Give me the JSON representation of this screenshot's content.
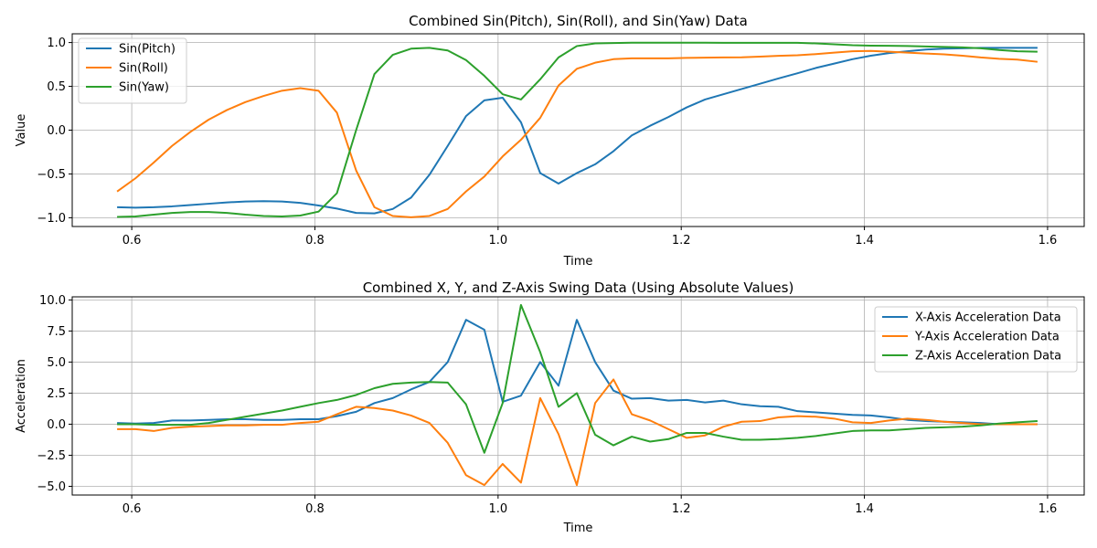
{
  "chart_data": [
    {
      "type": "line",
      "title": "Combined Sin(Pitch), Sin(Roll), and Sin(Yaw) Data",
      "xlabel": "Time",
      "ylabel": "Value",
      "xlim": [
        0.535,
        1.64
      ],
      "ylim": [
        -1.1,
        1.1
      ],
      "xticks": [
        0.6,
        0.8,
        1.0,
        1.2,
        1.4,
        1.6
      ],
      "xtick_labels": [
        "0.6",
        "0.8",
        "1.0",
        "1.2",
        "1.4",
        "1.6"
      ],
      "yticks": [
        -1.0,
        -0.5,
        0.0,
        0.5,
        1.0
      ],
      "ytick_labels": [
        "−1.0",
        "−0.5",
        "0.0",
        "0.5",
        "1.0"
      ],
      "grid": true,
      "legend_position": "upper-left",
      "x": [
        0.584,
        0.604,
        0.624,
        0.644,
        0.664,
        0.684,
        0.704,
        0.724,
        0.744,
        0.764,
        0.784,
        0.804,
        0.824,
        0.845,
        0.865,
        0.885,
        0.905,
        0.925,
        0.945,
        0.965,
        0.985,
        1.005,
        1.025,
        1.046,
        1.066,
        1.086,
        1.106,
        1.126,
        1.146,
        1.166,
        1.186,
        1.206,
        1.226,
        1.246,
        1.266,
        1.286,
        1.306,
        1.327,
        1.347,
        1.367,
        1.387,
        1.407,
        1.427,
        1.447,
        1.467,
        1.487,
        1.507,
        1.527,
        1.547,
        1.567,
        1.589
      ],
      "series": [
        {
          "name": "Sin(Pitch)",
          "color": "#1f77b4",
          "values": [
            -0.88,
            -0.885,
            -0.88,
            -0.87,
            -0.855,
            -0.84,
            -0.825,
            -0.815,
            -0.81,
            -0.815,
            -0.83,
            -0.86,
            -0.895,
            -0.945,
            -0.95,
            -0.9,
            -0.77,
            -0.51,
            -0.18,
            0.16,
            0.34,
            0.37,
            0.09,
            -0.49,
            -0.61,
            -0.49,
            -0.39,
            -0.24,
            -0.06,
            0.05,
            0.15,
            0.26,
            0.35,
            0.41,
            0.47,
            0.53,
            0.59,
            0.65,
            0.71,
            0.76,
            0.81,
            0.85,
            0.88,
            0.9,
            0.92,
            0.93,
            0.935,
            0.94,
            0.94,
            0.94,
            0.94
          ]
        },
        {
          "name": "Sin(Roll)",
          "color": "#ff7f0e",
          "values": [
            -0.7,
            -0.55,
            -0.37,
            -0.18,
            -0.02,
            0.12,
            0.23,
            0.32,
            0.39,
            0.45,
            0.48,
            0.45,
            0.2,
            -0.46,
            -0.88,
            -0.98,
            -0.995,
            -0.98,
            -0.9,
            -0.7,
            -0.53,
            -0.3,
            -0.11,
            0.14,
            0.51,
            0.7,
            0.77,
            0.81,
            0.82,
            0.82,
            0.82,
            0.825,
            0.828,
            0.83,
            0.832,
            0.84,
            0.848,
            0.855,
            0.868,
            0.885,
            0.9,
            0.905,
            0.895,
            0.885,
            0.875,
            0.865,
            0.85,
            0.83,
            0.815,
            0.805,
            0.78
          ]
        },
        {
          "name": "Sin(Yaw)",
          "color": "#2ca02c",
          "values": [
            -0.99,
            -0.985,
            -0.965,
            -0.945,
            -0.935,
            -0.935,
            -0.945,
            -0.965,
            -0.98,
            -0.985,
            -0.975,
            -0.93,
            -0.72,
            0.0,
            0.64,
            0.86,
            0.93,
            0.94,
            0.91,
            0.8,
            0.62,
            0.41,
            0.35,
            0.58,
            0.83,
            0.96,
            0.99,
            0.995,
            0.998,
            0.998,
            0.998,
            0.998,
            0.998,
            0.997,
            0.997,
            0.997,
            0.997,
            0.997,
            0.99,
            0.98,
            0.97,
            0.965,
            0.963,
            0.96,
            0.955,
            0.95,
            0.945,
            0.935,
            0.915,
            0.9,
            0.895
          ]
        }
      ]
    },
    {
      "type": "line",
      "title": "Combined X, Y, and Z-Axis Swing Data (Using Absolute Values)",
      "xlabel": "Time",
      "ylabel": "Acceleration",
      "xlim": [
        0.535,
        1.64
      ],
      "ylim": [
        -5.7,
        10.25
      ],
      "xticks": [
        0.6,
        0.8,
        1.0,
        1.2,
        1.4,
        1.6
      ],
      "xtick_labels": [
        "0.6",
        "0.8",
        "1.0",
        "1.2",
        "1.4",
        "1.6"
      ],
      "yticks": [
        -5.0,
        -2.5,
        0.0,
        2.5,
        5.0,
        7.5,
        10.0
      ],
      "ytick_labels": [
        "−5.0",
        "−2.5",
        "0.0",
        "2.5",
        "5.0",
        "7.5",
        "10.0"
      ],
      "grid": true,
      "legend_position": "upper-right",
      "x": [
        0.584,
        0.604,
        0.624,
        0.644,
        0.664,
        0.684,
        0.704,
        0.724,
        0.744,
        0.764,
        0.784,
        0.804,
        0.824,
        0.845,
        0.865,
        0.885,
        0.905,
        0.925,
        0.945,
        0.965,
        0.985,
        1.005,
        1.025,
        1.046,
        1.066,
        1.086,
        1.106,
        1.126,
        1.146,
        1.166,
        1.186,
        1.206,
        1.226,
        1.246,
        1.266,
        1.286,
        1.306,
        1.327,
        1.347,
        1.367,
        1.387,
        1.407,
        1.427,
        1.447,
        1.467,
        1.487,
        1.507,
        1.527,
        1.547,
        1.567,
        1.589
      ],
      "series": [
        {
          "name": "X-Axis Acceleration Data",
          "color": "#1f77b4",
          "values": [
            0.1,
            0.05,
            0.1,
            0.3,
            0.3,
            0.35,
            0.4,
            0.4,
            0.35,
            0.35,
            0.4,
            0.4,
            0.65,
            1.0,
            1.7,
            2.1,
            2.8,
            3.4,
            5.0,
            8.4,
            7.6,
            1.8,
            2.3,
            5.0,
            3.1,
            8.4,
            5.0,
            2.7,
            2.05,
            2.1,
            1.9,
            1.95,
            1.75,
            1.9,
            1.6,
            1.45,
            1.4,
            1.05,
            0.95,
            0.85,
            0.75,
            0.7,
            0.55,
            0.35,
            0.25,
            0.2,
            0.15,
            0.1,
            0.0,
            0.0,
            0.0
          ]
        },
        {
          "name": "Y-Axis Acceleration Data",
          "color": "#ff7f0e",
          "values": [
            -0.4,
            -0.4,
            -0.55,
            -0.3,
            -0.2,
            -0.15,
            -0.1,
            -0.1,
            -0.05,
            -0.05,
            0.1,
            0.2,
            0.8,
            1.4,
            1.3,
            1.1,
            0.7,
            0.1,
            -1.5,
            -4.1,
            -4.9,
            -3.2,
            -4.7,
            2.1,
            -0.8,
            -4.9,
            1.7,
            3.6,
            0.8,
            0.3,
            -0.4,
            -1.1,
            -0.9,
            -0.2,
            0.2,
            0.25,
            0.55,
            0.65,
            0.6,
            0.45,
            0.15,
            0.1,
            0.3,
            0.45,
            0.35,
            0.2,
            0.1,
            0.0,
            0.0,
            0.0,
            0.0
          ]
        },
        {
          "name": "Z-Axis Acceleration Data",
          "color": "#2ca02c",
          "values": [
            0.0,
            0.0,
            -0.05,
            -0.05,
            -0.05,
            0.1,
            0.35,
            0.6,
            0.85,
            1.1,
            1.4,
            1.7,
            1.95,
            2.35,
            2.9,
            3.25,
            3.35,
            3.4,
            3.35,
            1.6,
            -2.3,
            1.7,
            9.6,
            5.8,
            1.4,
            2.5,
            -0.85,
            -1.7,
            -1.0,
            -1.4,
            -1.2,
            -0.7,
            -0.7,
            -1.0,
            -1.25,
            -1.25,
            -1.2,
            -1.1,
            -0.95,
            -0.75,
            -0.55,
            -0.5,
            -0.5,
            -0.4,
            -0.3,
            -0.25,
            -0.2,
            -0.1,
            0.05,
            0.15,
            0.25
          ]
        }
      ]
    }
  ]
}
